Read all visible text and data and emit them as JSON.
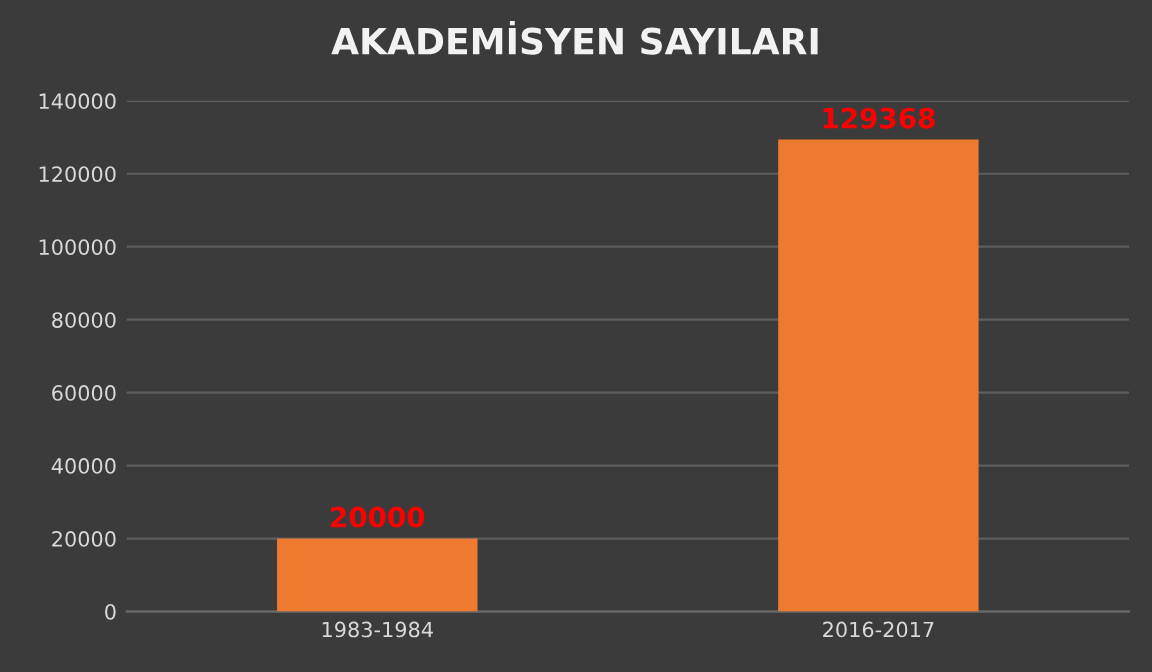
{
  "chart_data": {
    "type": "bar",
    "title": "AKADEMİSYEN SAYILARI",
    "categories": [
      "1983-1984",
      "2016-2017"
    ],
    "values": [
      20000,
      129368
    ],
    "color": "#ee7a30",
    "ylim": [
      0,
      140000
    ],
    "yticks": [
      0,
      20000,
      40000,
      60000,
      80000,
      100000,
      120000,
      140000
    ],
    "grid": "y",
    "data_labels": true
  }
}
